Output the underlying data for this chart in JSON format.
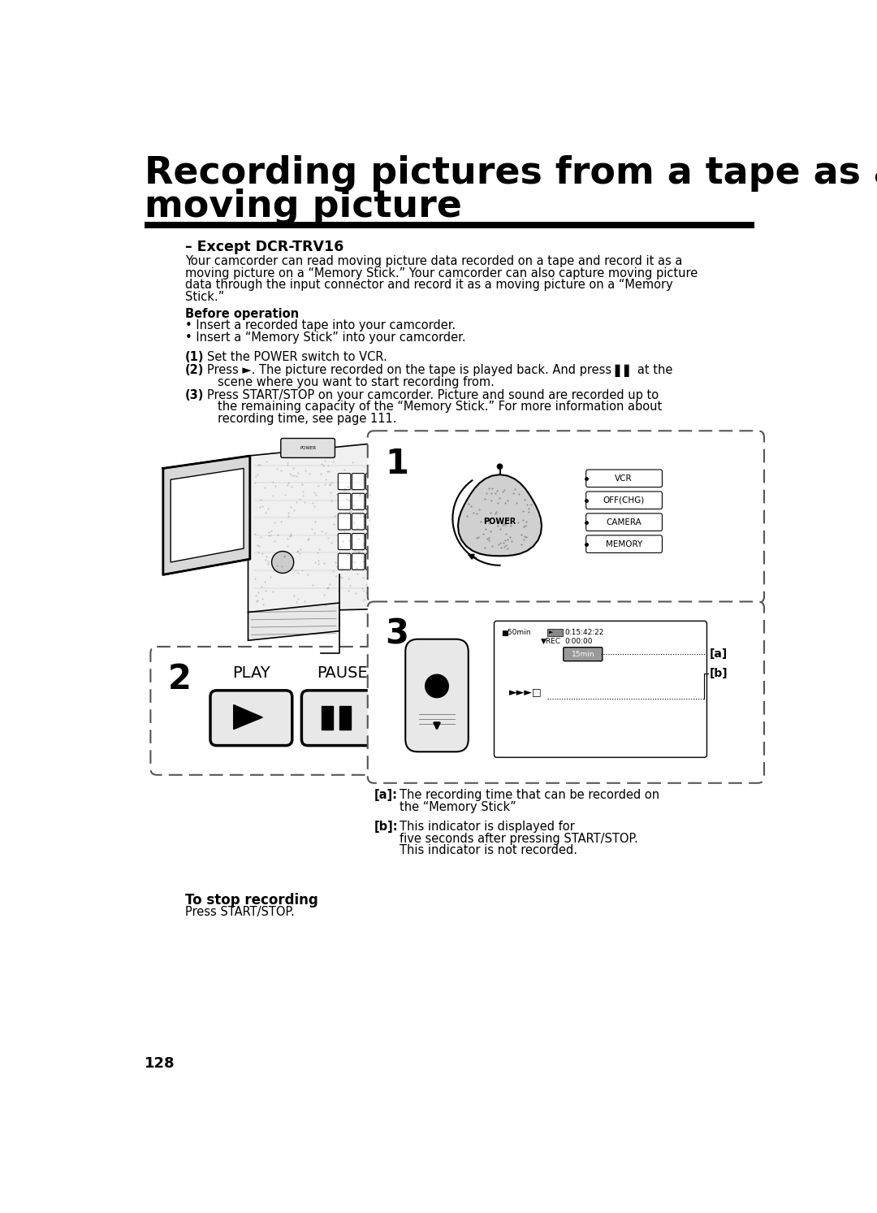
{
  "title_line1": "Recording pictures from a tape as a",
  "title_line2": "moving picture",
  "subtitle": "– Except DCR-TRV16",
  "body_text": [
    "Your camcorder can read moving picture data recorded on a tape and record it as a",
    "moving picture on a “Memory Stick.” Your camcorder can also capture moving picture",
    "data through the input connector and record it as a moving picture on a “Memory",
    "Stick.”"
  ],
  "before_op_title": "Before operation",
  "before_op_bullets": [
    "• Insert a recorded tape into your camcorder.",
    "• Insert a “Memory Stick” into your camcorder."
  ],
  "step1_num": "(1)",
  "step1_text": "Set the POWER switch to VCR.",
  "step2_num": "(2)",
  "step2_line1": "Press ►. The picture recorded on the tape is played back. And press ▌▌ at the",
  "step2_line2": "scene where you want to start recording from.",
  "step3_num": "(3)",
  "step3_line1": "Press START/STOP on your camcorder. Picture and sound are recorded up to",
  "step3_line2": "the remaining capacity of the “Memory Stick.” For more information about",
  "step3_line3": "recording time, see page 111.",
  "caption_a_label": "[a]:",
  "caption_a_text1": "The recording time that can be recorded on",
  "caption_a_text2": "the “Memory Stick”",
  "caption_b_label": "[b]:",
  "caption_b_text1": "This indicator is displayed for",
  "caption_b_text2": "five seconds after pressing START/STOP.",
  "caption_b_text3": "This indicator is not recorded.",
  "to_stop_title": "To stop recording",
  "to_stop_body": "Press START/STOP.",
  "page_number": "128",
  "bg_color": "#ffffff",
  "title_color": "#000000",
  "text_color": "#000000",
  "label1_vcr": "VCR",
  "label1_off": "OFF(CHG)",
  "label1_cam": "CAMERA",
  "label1_mem": "MEMORY",
  "disp_line1": "▆50min    ►  0:15:42:22",
  "disp_line2": "   ▼REC  0:00:00□",
  "disp_line3": "         15min",
  "disp_line4": "►►►□"
}
